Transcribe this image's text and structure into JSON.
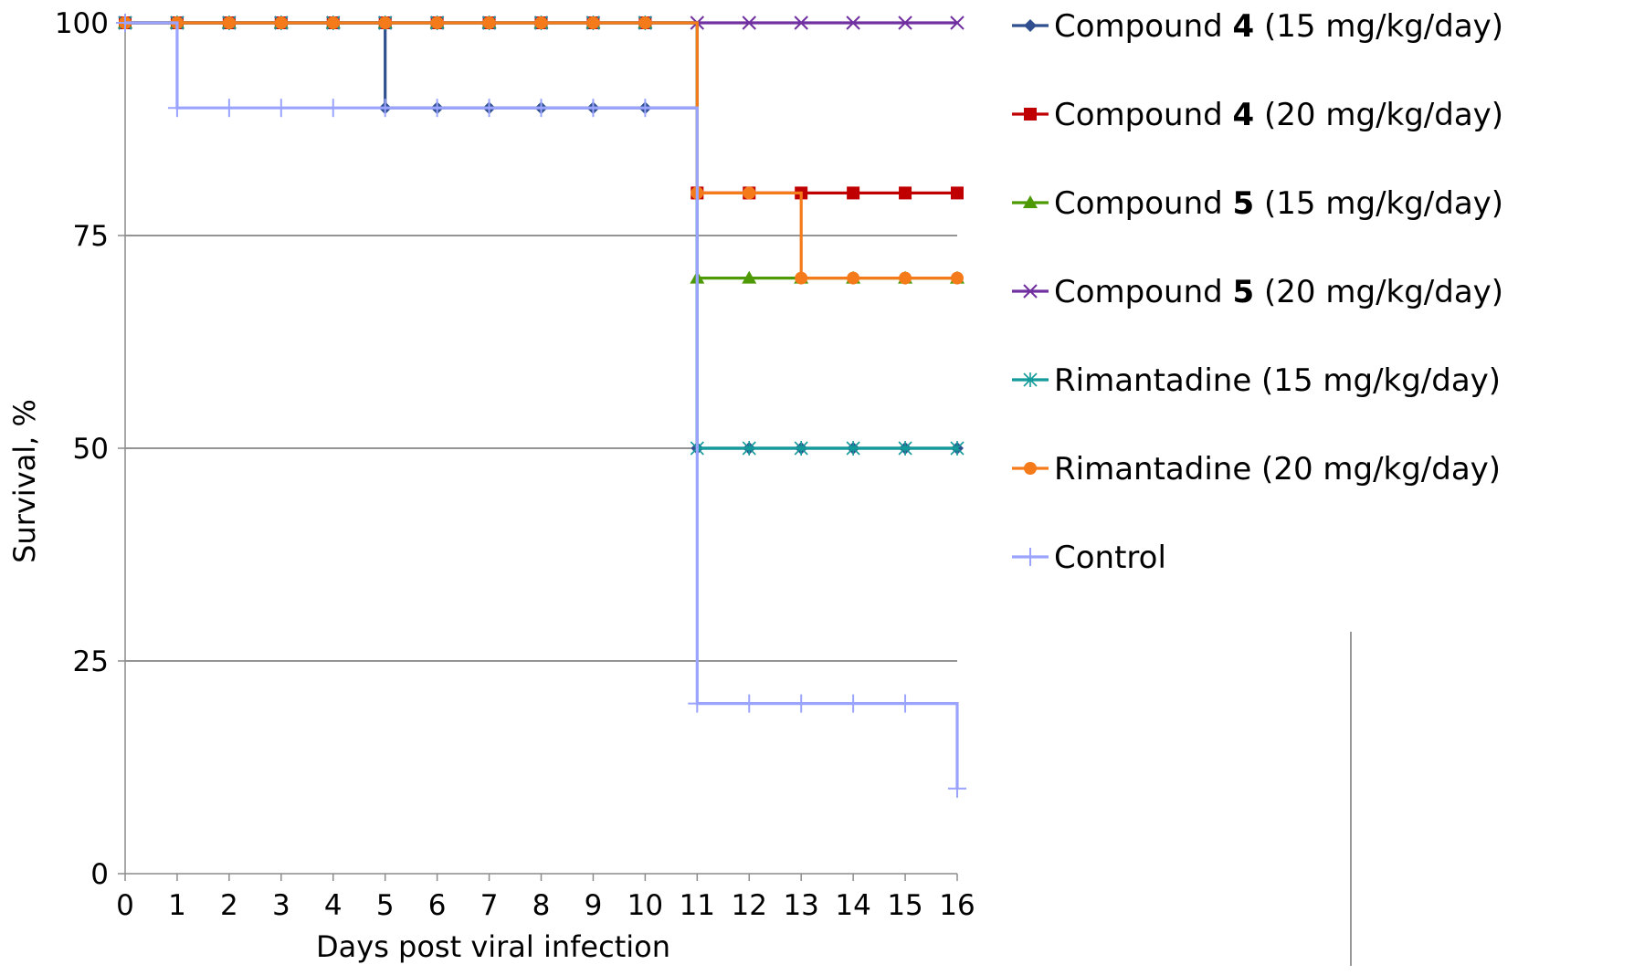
{
  "chart_data": {
    "type": "line",
    "title": "",
    "xlabel": "Days post viral infection",
    "ylabel": "Survival, %",
    "x": [
      0,
      1,
      2,
      3,
      4,
      5,
      6,
      7,
      8,
      9,
      10,
      11,
      12,
      13,
      14,
      15,
      16
    ],
    "xlim": [
      0,
      16
    ],
    "ylim": [
      0,
      100
    ],
    "x_ticks": [
      "0",
      "1",
      "2",
      "3",
      "4",
      "5",
      "6",
      "7",
      "8",
      "9",
      "10",
      "11",
      "12",
      "13",
      "14",
      "15",
      "16"
    ],
    "y_ticks": [
      "0",
      "25",
      "50",
      "75",
      "100"
    ],
    "grid": {
      "horizontal": true,
      "vertical": false
    },
    "legend_position": "right",
    "step": true,
    "series": [
      {
        "name": "Compound 4 (15 mg/kg/day)",
        "name_parts": [
          "Compound ",
          "4",
          " (15 mg/kg/day)"
        ],
        "color": "#2f4f8f",
        "marker": "diamond",
        "values": [
          100,
          100,
          100,
          100,
          100,
          90,
          90,
          90,
          90,
          90,
          90,
          50,
          50,
          50,
          50,
          50,
          50
        ]
      },
      {
        "name": "Compound 4 (20 mg/kg/day)",
        "name_parts": [
          "Compound ",
          "4",
          " (20 mg/kg/day)"
        ],
        "color": "#c00000",
        "marker": "square",
        "values": [
          100,
          100,
          100,
          100,
          100,
          100,
          100,
          100,
          100,
          100,
          100,
          80,
          80,
          80,
          80,
          80,
          80
        ]
      },
      {
        "name": "Compound 5 (15 mg/kg/day)",
        "name_parts": [
          "Compound ",
          "5",
          " (15 mg/kg/day)"
        ],
        "color": "#4e9a06",
        "marker": "triangle",
        "values": [
          100,
          100,
          100,
          100,
          100,
          100,
          100,
          100,
          100,
          100,
          100,
          70,
          70,
          70,
          70,
          70,
          70
        ]
      },
      {
        "name": "Compound 5 (20 mg/kg/day)",
        "name_parts": [
          "Compound ",
          "5",
          " (20 mg/kg/day)"
        ],
        "color": "#7030a0",
        "marker": "x",
        "values": [
          100,
          100,
          100,
          100,
          100,
          100,
          100,
          100,
          100,
          100,
          100,
          100,
          100,
          100,
          100,
          100,
          100
        ]
      },
      {
        "name": "Rimantadine (15 mg/kg/day)",
        "name_parts": [
          "Rimantadine (15 mg/kg/day)"
        ],
        "color": "#139a9a",
        "marker": "asterisk",
        "values": [
          100,
          100,
          100,
          100,
          100,
          100,
          100,
          100,
          100,
          100,
          100,
          50,
          50,
          50,
          50,
          50,
          50
        ]
      },
      {
        "name": "Rimantadine (20 mg/kg/day)",
        "name_parts": [
          "Rimantadine (20 mg/kg/day)"
        ],
        "color": "#f57a1a",
        "marker": "circle",
        "values": [
          100,
          100,
          100,
          100,
          100,
          100,
          100,
          100,
          100,
          100,
          100,
          80,
          80,
          70,
          70,
          70,
          70
        ]
      },
      {
        "name": "Control",
        "name_parts": [
          "Control"
        ],
        "color": "#9aa4ff",
        "marker": "plus",
        "values": [
          100,
          90,
          90,
          90,
          90,
          90,
          90,
          90,
          90,
          90,
          90,
          20,
          20,
          20,
          20,
          20,
          10
        ]
      }
    ]
  }
}
